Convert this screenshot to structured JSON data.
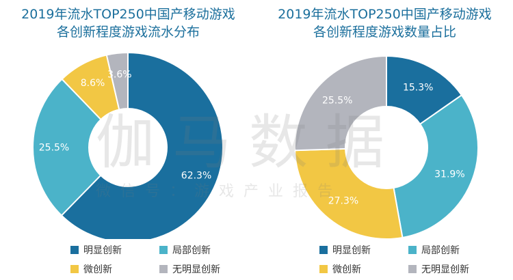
{
  "chart_data": [
    {
      "type": "pie",
      "variant": "donut",
      "title": "2019年流水TOP250中国产移动游戏各创新程度游戏流水分布",
      "title_lines": [
        "2019年流水TOP250中国产移动游戏",
        "各创新程度游戏流水分布"
      ],
      "categories": [
        "明显创新",
        "局部创新",
        "微创新",
        "无明显创新"
      ],
      "values": [
        62.3,
        25.5,
        8.6,
        3.6
      ],
      "labels": [
        "62.3%",
        "25.5%",
        "8.6%",
        "3.6%"
      ],
      "colors": [
        "#1a6f9e",
        "#4bb3c9",
        "#f2c744",
        "#b3b5bd"
      ],
      "legend_position": "bottom"
    },
    {
      "type": "pie",
      "variant": "donut",
      "title": "2019年流水TOP250中国产移动游戏各创新程度游戏数量占比",
      "title_lines": [
        "2019年流水TOP250中国产移动游戏",
        "各创新程度游戏数量占比"
      ],
      "categories": [
        "明显创新",
        "局部创新",
        "微创新",
        "无明显创新"
      ],
      "values": [
        15.3,
        31.9,
        27.3,
        25.5
      ],
      "labels": [
        "15.3%",
        "31.9%",
        "27.3%",
        "25.5%"
      ],
      "colors": [
        "#1a6f9e",
        "#4bb3c9",
        "#f2c744",
        "#b3b5bd"
      ],
      "legend_position": "bottom"
    }
  ],
  "watermark": {
    "main": "伽马数据",
    "sub": "微信号：游戏产业报告"
  }
}
